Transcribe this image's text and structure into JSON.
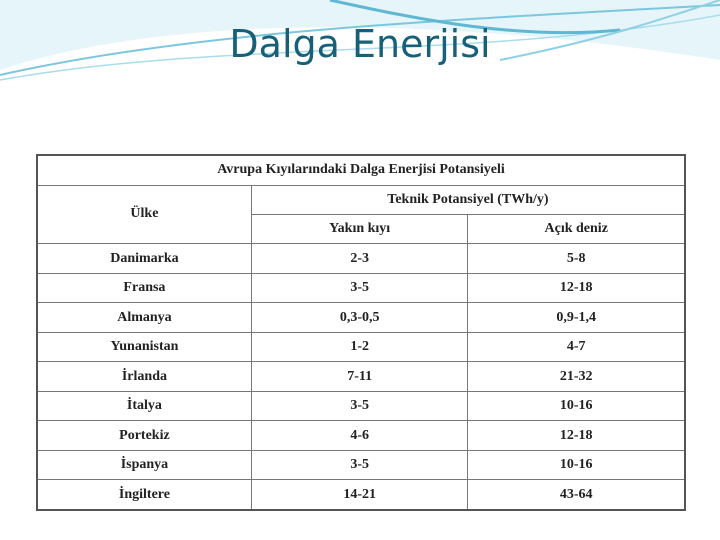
{
  "slide": {
    "title": "Dalga Enerjisi"
  },
  "table": {
    "caption": "Avrupa Kıyılarındaki Dalga Enerjisi Potansiyeli",
    "country_header": "Ülke",
    "group_header": "Teknik Potansiyel (TWh/y)",
    "sub_headers": [
      "Yakın kıyı",
      "Açık deniz"
    ],
    "rows": [
      [
        "Danimarka",
        "2-3",
        "5-8"
      ],
      [
        "Fransa",
        "3-5",
        "12-18"
      ],
      [
        "Almanya",
        "0,3-0,5",
        "0,9-1,4"
      ],
      [
        "Yunanistan",
        "1-2",
        "4-7"
      ],
      [
        "İrlanda",
        "7-11",
        "21-32"
      ],
      [
        "İtalya",
        "3-5",
        "10-16"
      ],
      [
        "Portekiz",
        "4-6",
        "12-18"
      ],
      [
        "İspanya",
        "3-5",
        "10-16"
      ],
      [
        "İngiltere",
        "14-21",
        "43-64"
      ]
    ]
  }
}
